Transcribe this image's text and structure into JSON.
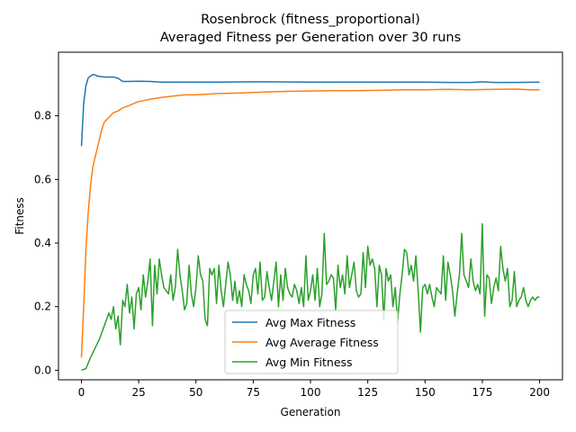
{
  "chart_data": {
    "type": "line",
    "title": "Rosenbrock (fitness_proportional)",
    "subtitle": "Averaged Fitness per Generation over 30 runs",
    "xlabel": "Generation",
    "ylabel": "Fitness",
    "xlim": [
      -10,
      210
    ],
    "ylim": [
      -0.03,
      1.0
    ],
    "xticks": [
      "0",
      "25",
      "50",
      "75",
      "100",
      "125",
      "150",
      "175",
      "200"
    ],
    "yticks": [
      "0.0",
      "0.2",
      "0.4",
      "0.6",
      "0.8"
    ],
    "grid": false,
    "legend": "bottom-center",
    "series": [
      {
        "name": "Avg Max Fitness",
        "color": "#1f77b4",
        "points": [
          [
            0,
            0.705
          ],
          [
            1,
            0.84
          ],
          [
            2,
            0.895
          ],
          [
            3,
            0.92
          ],
          [
            4,
            0.925
          ],
          [
            5,
            0.93
          ],
          [
            6,
            0.928
          ],
          [
            7,
            0.925
          ],
          [
            8,
            0.924
          ],
          [
            10,
            0.922
          ],
          [
            12,
            0.922
          ],
          [
            14,
            0.922
          ],
          [
            16,
            0.918
          ],
          [
            18,
            0.908
          ],
          [
            20,
            0.908
          ],
          [
            25,
            0.909
          ],
          [
            30,
            0.908
          ],
          [
            35,
            0.906
          ],
          [
            40,
            0.906
          ],
          [
            50,
            0.906
          ],
          [
            60,
            0.906
          ],
          [
            75,
            0.907
          ],
          [
            80,
            0.907
          ],
          [
            100,
            0.906
          ],
          [
            125,
            0.906
          ],
          [
            150,
            0.906
          ],
          [
            160,
            0.905
          ],
          [
            170,
            0.905
          ],
          [
            175,
            0.907
          ],
          [
            180,
            0.905
          ],
          [
            190,
            0.905
          ],
          [
            200,
            0.906
          ]
        ]
      },
      {
        "name": "Avg Average Fitness",
        "color": "#ff7f0e",
        "points": [
          [
            0,
            0.04
          ],
          [
            1,
            0.2
          ],
          [
            2,
            0.38
          ],
          [
            3,
            0.5
          ],
          [
            4,
            0.58
          ],
          [
            5,
            0.64
          ],
          [
            6,
            0.67
          ],
          [
            7,
            0.7
          ],
          [
            8,
            0.73
          ],
          [
            9,
            0.76
          ],
          [
            10,
            0.78
          ],
          [
            12,
            0.795
          ],
          [
            14,
            0.81
          ],
          [
            16,
            0.815
          ],
          [
            18,
            0.825
          ],
          [
            20,
            0.83
          ],
          [
            25,
            0.845
          ],
          [
            30,
            0.852
          ],
          [
            35,
            0.858
          ],
          [
            40,
            0.862
          ],
          [
            45,
            0.866
          ],
          [
            50,
            0.866
          ],
          [
            55,
            0.868
          ],
          [
            60,
            0.87
          ],
          [
            70,
            0.872
          ],
          [
            80,
            0.875
          ],
          [
            90,
            0.877
          ],
          [
            100,
            0.878
          ],
          [
            110,
            0.879
          ],
          [
            120,
            0.879
          ],
          [
            130,
            0.88
          ],
          [
            140,
            0.882
          ],
          [
            150,
            0.882
          ],
          [
            160,
            0.883
          ],
          [
            170,
            0.882
          ],
          [
            180,
            0.883
          ],
          [
            190,
            0.884
          ],
          [
            195,
            0.882
          ],
          [
            200,
            0.882
          ]
        ]
      },
      {
        "name": "Avg Min Fitness",
        "color": "#2ca02c",
        "points": [
          [
            0,
            0.0
          ],
          [
            2,
            0.005
          ],
          [
            4,
            0.04
          ],
          [
            6,
            0.07
          ],
          [
            8,
            0.1
          ],
          [
            10,
            0.14
          ],
          [
            12,
            0.18
          ],
          [
            13,
            0.16
          ],
          [
            14,
            0.2
          ],
          [
            15,
            0.13
          ],
          [
            16,
            0.17
          ],
          [
            17,
            0.08
          ],
          [
            18,
            0.22
          ],
          [
            19,
            0.2
          ],
          [
            20,
            0.27
          ],
          [
            21,
            0.18
          ],
          [
            22,
            0.23
          ],
          [
            23,
            0.13
          ],
          [
            24,
            0.24
          ],
          [
            25,
            0.26
          ],
          [
            26,
            0.19
          ],
          [
            27,
            0.3
          ],
          [
            28,
            0.23
          ],
          [
            29,
            0.28
          ],
          [
            30,
            0.35
          ],
          [
            31,
            0.14
          ],
          [
            32,
            0.33
          ],
          [
            33,
            0.24
          ],
          [
            34,
            0.35
          ],
          [
            35,
            0.3
          ],
          [
            36,
            0.26
          ],
          [
            37,
            0.25
          ],
          [
            38,
            0.24
          ],
          [
            39,
            0.3
          ],
          [
            40,
            0.22
          ],
          [
            41,
            0.26
          ],
          [
            42,
            0.38
          ],
          [
            43,
            0.3
          ],
          [
            44,
            0.25
          ],
          [
            45,
            0.19
          ],
          [
            46,
            0.21
          ],
          [
            47,
            0.33
          ],
          [
            48,
            0.24
          ],
          [
            49,
            0.2
          ],
          [
            50,
            0.26
          ],
          [
            51,
            0.36
          ],
          [
            52,
            0.3
          ],
          [
            53,
            0.28
          ],
          [
            54,
            0.16
          ],
          [
            55,
            0.14
          ],
          [
            56,
            0.32
          ],
          [
            57,
            0.3
          ],
          [
            58,
            0.32
          ],
          [
            59,
            0.21
          ],
          [
            60,
            0.33
          ],
          [
            61,
            0.25
          ],
          [
            62,
            0.2
          ],
          [
            63,
            0.27
          ],
          [
            64,
            0.34
          ],
          [
            65,
            0.3
          ],
          [
            66,
            0.22
          ],
          [
            67,
            0.28
          ],
          [
            68,
            0.21
          ],
          [
            69,
            0.25
          ],
          [
            70,
            0.2
          ],
          [
            71,
            0.3
          ],
          [
            72,
            0.27
          ],
          [
            73,
            0.25
          ],
          [
            74,
            0.21
          ],
          [
            75,
            0.3
          ],
          [
            76,
            0.32
          ],
          [
            77,
            0.24
          ],
          [
            78,
            0.34
          ],
          [
            79,
            0.22
          ],
          [
            80,
            0.23
          ],
          [
            81,
            0.31
          ],
          [
            82,
            0.26
          ],
          [
            83,
            0.22
          ],
          [
            84,
            0.28
          ],
          [
            85,
            0.34
          ],
          [
            86,
            0.2
          ],
          [
            87,
            0.3
          ],
          [
            88,
            0.22
          ],
          [
            89,
            0.32
          ],
          [
            90,
            0.26
          ],
          [
            91,
            0.24
          ],
          [
            92,
            0.23
          ],
          [
            93,
            0.27
          ],
          [
            94,
            0.25
          ],
          [
            95,
            0.21
          ],
          [
            96,
            0.26
          ],
          [
            97,
            0.2
          ],
          [
            98,
            0.36
          ],
          [
            99,
            0.22
          ],
          [
            100,
            0.25
          ],
          [
            101,
            0.3
          ],
          [
            102,
            0.22
          ],
          [
            103,
            0.32
          ],
          [
            104,
            0.2
          ],
          [
            105,
            0.24
          ],
          [
            106,
            0.43
          ],
          [
            107,
            0.27
          ],
          [
            108,
            0.28
          ],
          [
            109,
            0.3
          ],
          [
            110,
            0.29
          ],
          [
            111,
            0.19
          ],
          [
            112,
            0.33
          ],
          [
            113,
            0.26
          ],
          [
            114,
            0.3
          ],
          [
            115,
            0.24
          ],
          [
            116,
            0.36
          ],
          [
            117,
            0.26
          ],
          [
            118,
            0.3
          ],
          [
            119,
            0.34
          ],
          [
            120,
            0.25
          ],
          [
            121,
            0.23
          ],
          [
            122,
            0.24
          ],
          [
            123,
            0.37
          ],
          [
            124,
            0.26
          ],
          [
            125,
            0.39
          ],
          [
            126,
            0.33
          ],
          [
            127,
            0.35
          ],
          [
            128,
            0.32
          ],
          [
            129,
            0.2
          ],
          [
            130,
            0.33
          ],
          [
            131,
            0.3
          ],
          [
            132,
            0.16
          ],
          [
            133,
            0.32
          ],
          [
            134,
            0.28
          ],
          [
            135,
            0.3
          ],
          [
            136,
            0.2
          ],
          [
            137,
            0.26
          ],
          [
            138,
            0.15
          ],
          [
            139,
            0.24
          ],
          [
            140,
            0.3
          ],
          [
            141,
            0.38
          ],
          [
            142,
            0.37
          ],
          [
            143,
            0.3
          ],
          [
            144,
            0.33
          ],
          [
            145,
            0.28
          ],
          [
            146,
            0.36
          ],
          [
            147,
            0.25
          ],
          [
            148,
            0.12
          ],
          [
            149,
            0.26
          ],
          [
            150,
            0.27
          ],
          [
            151,
            0.24
          ],
          [
            152,
            0.27
          ],
          [
            153,
            0.23
          ],
          [
            154,
            0.2
          ],
          [
            155,
            0.26
          ],
          [
            156,
            0.25
          ],
          [
            157,
            0.24
          ],
          [
            158,
            0.36
          ],
          [
            159,
            0.22
          ],
          [
            160,
            0.34
          ],
          [
            161,
            0.3
          ],
          [
            162,
            0.25
          ],
          [
            163,
            0.17
          ],
          [
            164,
            0.24
          ],
          [
            165,
            0.3
          ],
          [
            166,
            0.43
          ],
          [
            167,
            0.3
          ],
          [
            168,
            0.28
          ],
          [
            169,
            0.26
          ],
          [
            170,
            0.35
          ],
          [
            171,
            0.28
          ],
          [
            172,
            0.25
          ],
          [
            173,
            0.27
          ],
          [
            174,
            0.24
          ],
          [
            175,
            0.46
          ],
          [
            176,
            0.17
          ],
          [
            177,
            0.3
          ],
          [
            178,
            0.29
          ],
          [
            179,
            0.21
          ],
          [
            180,
            0.26
          ],
          [
            181,
            0.29
          ],
          [
            182,
            0.25
          ],
          [
            183,
            0.39
          ],
          [
            184,
            0.32
          ],
          [
            185,
            0.28
          ],
          [
            186,
            0.32
          ],
          [
            187,
            0.2
          ],
          [
            188,
            0.22
          ],
          [
            189,
            0.31
          ],
          [
            190,
            0.2
          ],
          [
            191,
            0.22
          ],
          [
            192,
            0.23
          ],
          [
            193,
            0.26
          ],
          [
            194,
            0.22
          ],
          [
            195,
            0.2
          ],
          [
            196,
            0.22
          ],
          [
            197,
            0.23
          ],
          [
            198,
            0.22
          ],
          [
            199,
            0.23
          ],
          [
            200,
            0.23
          ]
        ]
      }
    ]
  }
}
